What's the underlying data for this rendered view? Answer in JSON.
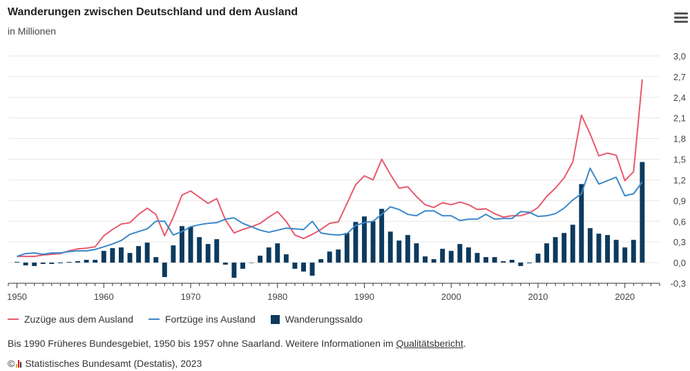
{
  "header": {
    "title": "Wanderungen zwischen Deutschland und dem Ausland",
    "subtitle": "in Millionen",
    "menu_icon": "hamburger-menu-icon"
  },
  "colors": {
    "zuzuege": "#e8586d",
    "fortzuege": "#3a87c8",
    "saldo": "#0c3a5e",
    "grid": "#e6e6e6",
    "axis": "#333333"
  },
  "chart_data": {
    "type": "bar",
    "title": "Wanderungen zwischen Deutschland und dem Ausland",
    "subtitle": "in Millionen",
    "x": [
      1950,
      1951,
      1952,
      1953,
      1954,
      1955,
      1956,
      1957,
      1958,
      1959,
      1960,
      1961,
      1962,
      1963,
      1964,
      1965,
      1966,
      1967,
      1968,
      1969,
      1970,
      1971,
      1972,
      1973,
      1974,
      1975,
      1976,
      1977,
      1978,
      1979,
      1980,
      1981,
      1982,
      1983,
      1984,
      1985,
      1986,
      1987,
      1988,
      1989,
      1990,
      1991,
      1992,
      1993,
      1994,
      1995,
      1996,
      1997,
      1998,
      1999,
      2000,
      2001,
      2002,
      2003,
      2004,
      2005,
      2006,
      2007,
      2008,
      2009,
      2010,
      2011,
      2012,
      2013,
      2014,
      2015,
      2016,
      2017,
      2018,
      2019,
      2020,
      2021,
      2022
    ],
    "xlim": [
      1949,
      2024
    ],
    "ylim": [
      -0.3,
      3.0
    ],
    "yticks": [
      -0.3,
      0.0,
      0.3,
      0.6,
      0.9,
      1.2,
      1.5,
      1.8,
      2.1,
      2.4,
      2.7,
      3.0
    ],
    "ytick_labels": [
      "-0,3",
      "0,0",
      "0,3",
      "0,6",
      "0,9",
      "1,2",
      "1,5",
      "1,8",
      "2,1",
      "2,4",
      "2,7",
      "3,0"
    ],
    "xticks": [
      1950,
      1960,
      1970,
      1980,
      1990,
      2000,
      2010,
      2020
    ],
    "xtick_labels": [
      "1950",
      "1960",
      "1970",
      "1980",
      "1990",
      "2000",
      "2010",
      "2020"
    ],
    "grid": true,
    "legend_position": "bottom-left",
    "series": [
      {
        "name": "Zuzüge aus dem Ausland",
        "type": "line",
        "values": [
          0.09,
          0.09,
          0.09,
          0.11,
          0.12,
          0.13,
          0.17,
          0.2,
          0.21,
          0.23,
          0.39,
          0.48,
          0.56,
          0.58,
          0.7,
          0.79,
          0.7,
          0.39,
          0.66,
          0.98,
          1.04,
          0.95,
          0.86,
          0.93,
          0.62,
          0.43,
          0.48,
          0.52,
          0.57,
          0.66,
          0.74,
          0.6,
          0.4,
          0.35,
          0.41,
          0.48,
          0.57,
          0.59,
          0.86,
          1.13,
          1.26,
          1.2,
          1.5,
          1.28,
          1.08,
          1.1,
          0.96,
          0.84,
          0.8,
          0.87,
          0.84,
          0.88,
          0.84,
          0.77,
          0.78,
          0.71,
          0.66,
          0.68,
          0.68,
          0.72,
          0.8,
          0.96,
          1.08,
          1.23,
          1.46,
          2.14,
          1.87,
          1.55,
          1.59,
          1.56,
          1.19,
          1.32,
          2.66
        ]
      },
      {
        "name": "Fortzüge ins Ausland",
        "type": "line",
        "values": [
          0.09,
          0.13,
          0.14,
          0.12,
          0.14,
          0.14,
          0.16,
          0.17,
          0.17,
          0.19,
          0.23,
          0.27,
          0.32,
          0.41,
          0.45,
          0.49,
          0.6,
          0.6,
          0.4,
          0.45,
          0.52,
          0.55,
          0.57,
          0.58,
          0.63,
          0.65,
          0.57,
          0.52,
          0.47,
          0.44,
          0.47,
          0.5,
          0.49,
          0.48,
          0.6,
          0.43,
          0.41,
          0.4,
          0.42,
          0.54,
          0.58,
          0.6,
          0.7,
          0.81,
          0.77,
          0.7,
          0.68,
          0.75,
          0.75,
          0.68,
          0.68,
          0.61,
          0.63,
          0.63,
          0.7,
          0.63,
          0.64,
          0.64,
          0.74,
          0.73,
          0.67,
          0.68,
          0.71,
          0.79,
          0.91,
          1.0,
          1.37,
          1.14,
          1.19,
          1.24,
          0.97,
          1.0,
          1.17
        ]
      },
      {
        "name": "Wanderungssaldo",
        "type": "bar",
        "values": [
          0.01,
          -0.04,
          -0.05,
          -0.02,
          -0.02,
          -0.01,
          0.01,
          0.02,
          0.04,
          0.04,
          0.17,
          0.21,
          0.22,
          0.14,
          0.24,
          0.29,
          0.08,
          -0.21,
          0.25,
          0.53,
          0.52,
          0.37,
          0.27,
          0.34,
          -0.03,
          -0.22,
          -0.09,
          0.0,
          0.1,
          0.22,
          0.28,
          0.12,
          -0.09,
          -0.13,
          -0.19,
          0.05,
          0.16,
          0.19,
          0.43,
          0.59,
          0.67,
          0.6,
          0.78,
          0.45,
          0.32,
          0.4,
          0.28,
          0.09,
          0.05,
          0.2,
          0.17,
          0.27,
          0.22,
          0.14,
          0.08,
          0.08,
          0.02,
          0.04,
          -0.05,
          -0.01,
          0.13,
          0.28,
          0.37,
          0.43,
          0.55,
          1.14,
          0.5,
          0.42,
          0.4,
          0.33,
          0.22,
          0.33,
          1.46
        ]
      }
    ]
  },
  "legend": {
    "zuzuege": "Zuzüge aus dem Ausland",
    "fortzuege": "Fortzüge ins Ausland",
    "saldo": "Wanderungssaldo"
  },
  "footer": {
    "note_text": "Bis 1990 Früheres Bundesgebiet, 1950 bis 1957 ohne Saarland. Weitere Informationen im ",
    "note_link": "Qualitätsbericht",
    "note_end": ".",
    "credit_symbol": "©",
    "credit_text": "Statistisches Bundesamt (Destatis), 2023"
  }
}
